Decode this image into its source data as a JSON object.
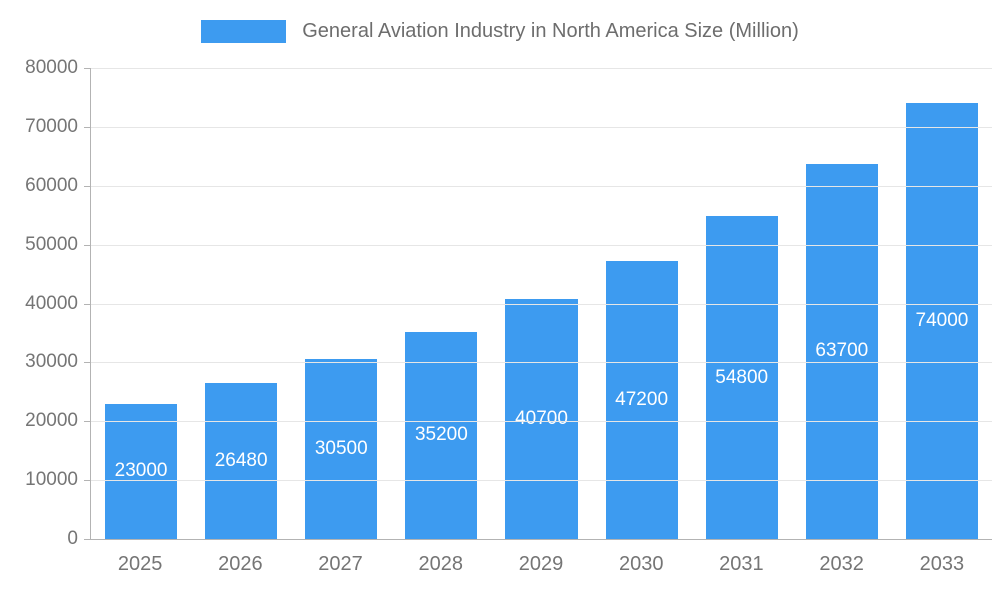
{
  "chart_data": {
    "type": "bar",
    "title": "General Aviation Industry in North America Size (Million)",
    "categories": [
      "2025",
      "2026",
      "2027",
      "2028",
      "2029",
      "2030",
      "2031",
      "2032",
      "2033"
    ],
    "values": [
      23000,
      26480,
      30500,
      35200,
      40700,
      47200,
      54800,
      63700,
      74000
    ],
    "xlabel": "",
    "ylabel": "",
    "ylim": [
      0,
      80000
    ],
    "ytick_step": 10000,
    "grid": true,
    "legend_position": "top",
    "bar_color": "#3d9bf0",
    "bar_label_color": "#ffffff",
    "axis_text_color": "#757575",
    "gridline_color": "#e6e6e6"
  }
}
